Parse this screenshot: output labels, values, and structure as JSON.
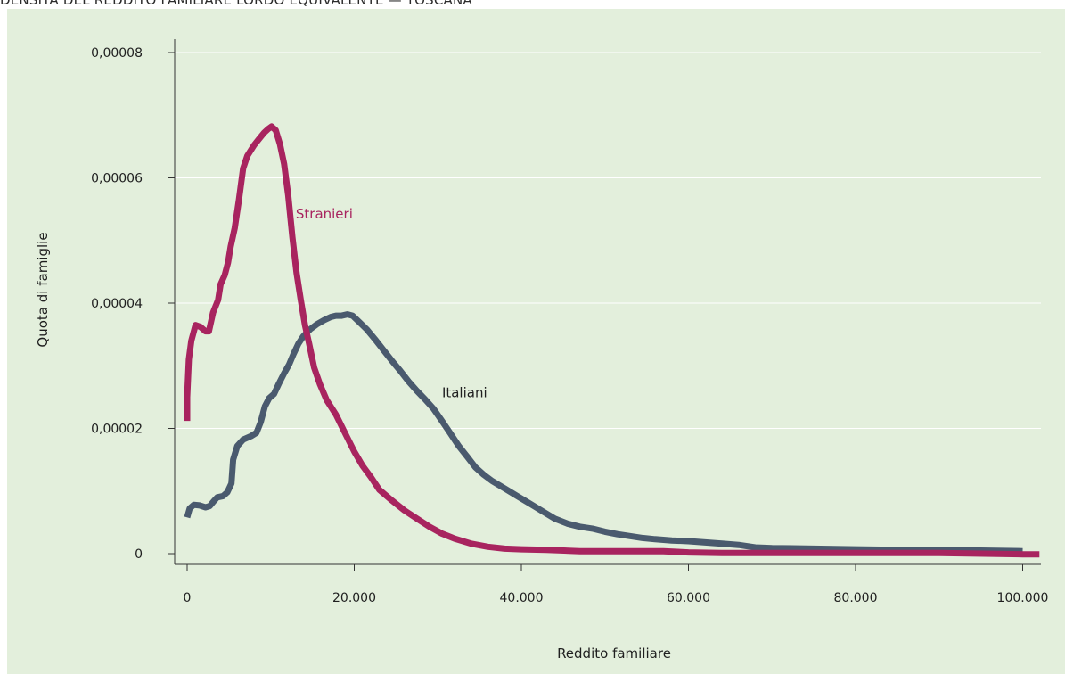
{
  "title": "DENSITÀ DEL REDDITO FAMILIARE LORDO EQUIVALENTE — TOSCANA",
  "chart_data": {
    "type": "line",
    "title": "DENSITÀ DEL REDDITO FAMILIARE LORDO EQUIVALENTE — TOSCANA",
    "xlabel": "Reddito familiare",
    "ylabel": "Quota di famiglie",
    "xlim": [
      -2000,
      102000
    ],
    "ylim": [
      -1e-06,
      8e-05
    ],
    "x_ticks": [
      0,
      20000,
      40000,
      60000,
      80000,
      100000
    ],
    "x_tick_labels": [
      "0",
      "20.000",
      "40.000",
      "60.000",
      "80.000",
      "100.000"
    ],
    "y_ticks": [
      0,
      2e-05,
      4e-05,
      6e-05,
      8e-05
    ],
    "y_tick_labels": [
      "0",
      "0,00002",
      "0,00004",
      "0,00006",
      "0,00008"
    ],
    "grid": "horizontal",
    "legend": "inline labels",
    "series": [
      {
        "name": "Stranieri",
        "color": "#a8245f",
        "points": [
          [
            0,
            2.12e-05
          ],
          [
            0,
            2.5e-05
          ],
          [
            200,
            3.1e-05
          ],
          [
            500,
            3.4e-05
          ],
          [
            1000,
            3.65e-05
          ],
          [
            1600,
            3.62e-05
          ],
          [
            2200,
            3.55e-05
          ],
          [
            2600,
            3.55e-05
          ],
          [
            3100,
            3.85e-05
          ],
          [
            3700,
            4.05e-05
          ],
          [
            4000,
            4.3e-05
          ],
          [
            4500,
            4.45e-05
          ],
          [
            4900,
            4.65e-05
          ],
          [
            5200,
            4.9e-05
          ],
          [
            5700,
            5.2e-05
          ],
          [
            6200,
            5.65e-05
          ],
          [
            6700,
            6.15e-05
          ],
          [
            7200,
            6.35e-05
          ],
          [
            8000,
            6.52e-05
          ],
          [
            8600,
            6.62e-05
          ],
          [
            9200,
            6.72e-05
          ],
          [
            9700,
            6.78e-05
          ],
          [
            10100,
            6.82e-05
          ],
          [
            10600,
            6.76e-05
          ],
          [
            11100,
            6.54e-05
          ],
          [
            11600,
            6.22e-05
          ],
          [
            12100,
            5.72e-05
          ],
          [
            12600,
            5.05e-05
          ],
          [
            13100,
            4.48e-05
          ],
          [
            13600,
            4.05e-05
          ],
          [
            14100,
            3.65e-05
          ],
          [
            14600,
            3.35e-05
          ],
          [
            15200,
            2.97e-05
          ],
          [
            15900,
            2.7e-05
          ],
          [
            16700,
            2.45e-05
          ],
          [
            17800,
            2.22e-05
          ],
          [
            18800,
            1.95e-05
          ],
          [
            20000,
            1.63e-05
          ],
          [
            21000,
            1.4e-05
          ],
          [
            22000,
            1.22e-05
          ],
          [
            23000,
            1.02e-05
          ],
          [
            24500,
            8.5e-06
          ],
          [
            26000,
            6.9e-06
          ],
          [
            27500,
            5.6e-06
          ],
          [
            29000,
            4.3e-06
          ],
          [
            30500,
            3.2e-06
          ],
          [
            32000,
            2.4e-06
          ],
          [
            34000,
            1.6e-06
          ],
          [
            36000,
            1.1e-06
          ],
          [
            38000,
            8e-07
          ],
          [
            40000,
            7e-07
          ],
          [
            43000,
            6e-07
          ],
          [
            47000,
            4e-07
          ],
          [
            53000,
            4e-07
          ],
          [
            57000,
            4e-07
          ],
          [
            60000,
            2e-07
          ],
          [
            64000,
            1e-07
          ],
          [
            70000,
            1e-07
          ],
          [
            80000,
            1e-07
          ],
          [
            90000,
            1e-07
          ],
          [
            100000,
            -1e-07
          ],
          [
            102000,
            -1e-07
          ]
        ]
      },
      {
        "name": "Italiani",
        "color": "#4a5a6e",
        "points": [
          [
            0,
            5.8e-06
          ],
          [
            300,
            7.2e-06
          ],
          [
            800,
            7.8e-06
          ],
          [
            1500,
            7.7e-06
          ],
          [
            2200,
            7.4e-06
          ],
          [
            2700,
            7.6e-06
          ],
          [
            3200,
            8.4e-06
          ],
          [
            3600,
            9e-06
          ],
          [
            4300,
            9.2e-06
          ],
          [
            4800,
            9.8e-06
          ],
          [
            5300,
            1.12e-05
          ],
          [
            5500,
            1.5e-05
          ],
          [
            6000,
            1.72e-05
          ],
          [
            6700,
            1.82e-05
          ],
          [
            7700,
            1.88e-05
          ],
          [
            8300,
            1.93e-05
          ],
          [
            8800,
            2.1e-05
          ],
          [
            9300,
            2.35e-05
          ],
          [
            9800,
            2.48e-05
          ],
          [
            10400,
            2.55e-05
          ],
          [
            11000,
            2.72e-05
          ],
          [
            11600,
            2.88e-05
          ],
          [
            12200,
            3.02e-05
          ],
          [
            12700,
            3.18e-05
          ],
          [
            13300,
            3.35e-05
          ],
          [
            13900,
            3.47e-05
          ],
          [
            14700,
            3.58e-05
          ],
          [
            15500,
            3.66e-05
          ],
          [
            16400,
            3.73e-05
          ],
          [
            17200,
            3.78e-05
          ],
          [
            17800,
            3.8e-05
          ],
          [
            18500,
            3.8e-05
          ],
          [
            19200,
            3.82e-05
          ],
          [
            19800,
            3.8e-05
          ],
          [
            20500,
            3.71e-05
          ],
          [
            21500,
            3.58e-05
          ],
          [
            22500,
            3.42e-05
          ],
          [
            23500,
            3.25e-05
          ],
          [
            24500,
            3.08e-05
          ],
          [
            25500,
            2.92e-05
          ],
          [
            26500,
            2.75e-05
          ],
          [
            27500,
            2.6e-05
          ],
          [
            28500,
            2.46e-05
          ],
          [
            29500,
            2.31e-05
          ],
          [
            30500,
            2.12e-05
          ],
          [
            31500,
            1.92e-05
          ],
          [
            32500,
            1.72e-05
          ],
          [
            33500,
            1.55e-05
          ],
          [
            34500,
            1.38e-05
          ],
          [
            35500,
            1.26e-05
          ],
          [
            36500,
            1.16e-05
          ],
          [
            38000,
            1.04e-05
          ],
          [
            39500,
            9.2e-06
          ],
          [
            41000,
            8e-06
          ],
          [
            42500,
            6.8e-06
          ],
          [
            44000,
            5.6e-06
          ],
          [
            45500,
            4.8e-06
          ],
          [
            47000,
            4.3e-06
          ],
          [
            48500,
            4e-06
          ],
          [
            50000,
            3.5e-06
          ],
          [
            51500,
            3.1e-06
          ],
          [
            53000,
            2.8e-06
          ],
          [
            54500,
            2.5e-06
          ],
          [
            56000,
            2.3e-06
          ],
          [
            58000,
            2.1e-06
          ],
          [
            60000,
            2e-06
          ],
          [
            62000,
            1.8e-06
          ],
          [
            64000,
            1.6e-06
          ],
          [
            66000,
            1.4e-06
          ],
          [
            68000,
            1e-06
          ],
          [
            70000,
            9e-07
          ],
          [
            75000,
            8e-07
          ],
          [
            80000,
            7e-07
          ],
          [
            85000,
            6e-07
          ],
          [
            90000,
            5e-07
          ],
          [
            95000,
            5e-07
          ],
          [
            100000,
            4e-07
          ]
        ]
      }
    ],
    "annotations": [
      {
        "text": "Stranieri",
        "x": 13000,
        "y": 5.35e-05,
        "color": "#a8245f"
      },
      {
        "text": "Italiani",
        "x": 30500,
        "y": 2.5e-05,
        "color": "#1f1f1f"
      }
    ]
  }
}
